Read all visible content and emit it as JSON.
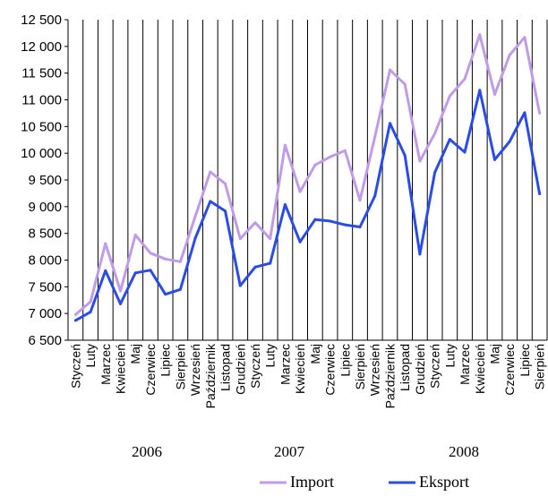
{
  "chart_data": {
    "type": "line",
    "categories": [
      "Styczeń",
      "Luty",
      "Marzec",
      "Kwiecień",
      "Maj",
      "Czerwiec",
      "Lipiec",
      "Sierpień",
      "Wrzesień",
      "Październik",
      "Listopad",
      "Grudzień",
      "Styczeń",
      "Luty",
      "Marzec",
      "Kwiecień",
      "Maj",
      "Czerwiec",
      "Lipiec",
      "Sierpień",
      "Wrzesień",
      "Październik",
      "Listopad",
      "Grudzień",
      "Styczeń",
      "Luty",
      "Marzec",
      "Kwiecień",
      "Maj",
      "Czerwiec",
      "Lipiec",
      "Sierpień"
    ],
    "years": [
      {
        "label": "2006",
        "start": 0,
        "end": 11
      },
      {
        "label": "2007",
        "start": 12,
        "end": 23
      },
      {
        "label": "2008",
        "start": 24,
        "end": 31
      }
    ],
    "y_ticks": [
      "12 500",
      "12 000",
      "11 500",
      "11 000",
      "10 500",
      "10 000",
      "9 500",
      "9 000",
      "8 500",
      "8 000",
      "7 500",
      "7 000",
      "6 500"
    ],
    "ylim": [
      6500,
      12500
    ],
    "y_step": 500,
    "grid": {
      "vertical": true,
      "horizontal": false
    },
    "legend_position": "bottom-right",
    "series": [
      {
        "name": "Import",
        "color": "#C09BE8",
        "values": [
          6980,
          7220,
          8310,
          7420,
          8470,
          8130,
          8020,
          7970,
          8820,
          9650,
          9430,
          8400,
          8700,
          8400,
          10150,
          9280,
          9780,
          9930,
          10050,
          9120,
          10310,
          11560,
          11290,
          9850,
          10370,
          11070,
          11390,
          12220,
          11100,
          11840,
          12170,
          10750
        ]
      },
      {
        "name": "Eksport",
        "color": "#2A4CE6",
        "values": [
          6870,
          7030,
          7800,
          7180,
          7760,
          7810,
          7360,
          7450,
          8410,
          9100,
          8920,
          7520,
          7870,
          7940,
          9040,
          8340,
          8760,
          8730,
          8660,
          8620,
          9200,
          10560,
          9960,
          8110,
          9640,
          10260,
          10020,
          11180,
          9880,
          10220,
          10760,
          9240
        ]
      }
    ]
  }
}
